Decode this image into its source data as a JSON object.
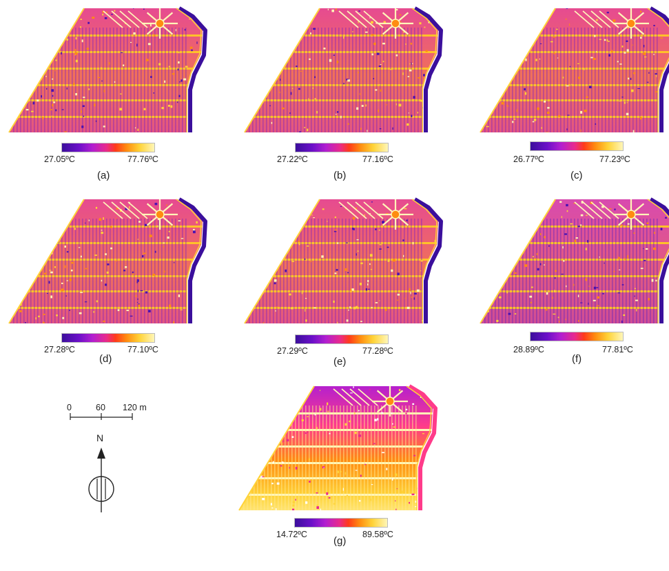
{
  "panels": [
    {
      "label": "(a)",
      "min": "27.05ºC",
      "max": "77.76ºC",
      "variant": "normal"
    },
    {
      "label": "(b)",
      "min": "27.22ºC",
      "max": "77.16ºC",
      "variant": "normal"
    },
    {
      "label": "(c)",
      "min": "26.77ºC",
      "max": "77.23ºC",
      "variant": "normal"
    },
    {
      "label": "(d)",
      "min": "27.28ºC",
      "max": "77.10ºC",
      "variant": "normal"
    },
    {
      "label": "(e)",
      "min": "27.29ºC",
      "max": "77.28ºC",
      "variant": "normal"
    },
    {
      "label": "(f)",
      "min": "28.89ºC",
      "max": "77.81ºC",
      "variant": "cool"
    },
    {
      "label": "(g)",
      "min": "14.72ºC",
      "max": "89.58ºC",
      "variant": "gradient"
    }
  ],
  "scale_bar": {
    "ticks": [
      "0",
      "60",
      "120 m"
    ]
  },
  "north_arrow": {
    "letter": "N"
  },
  "colors": {
    "low": "#3b0f9c",
    "mid": "#e82a8c",
    "high": "#ff8c10",
    "top": "#fff6b8"
  }
}
